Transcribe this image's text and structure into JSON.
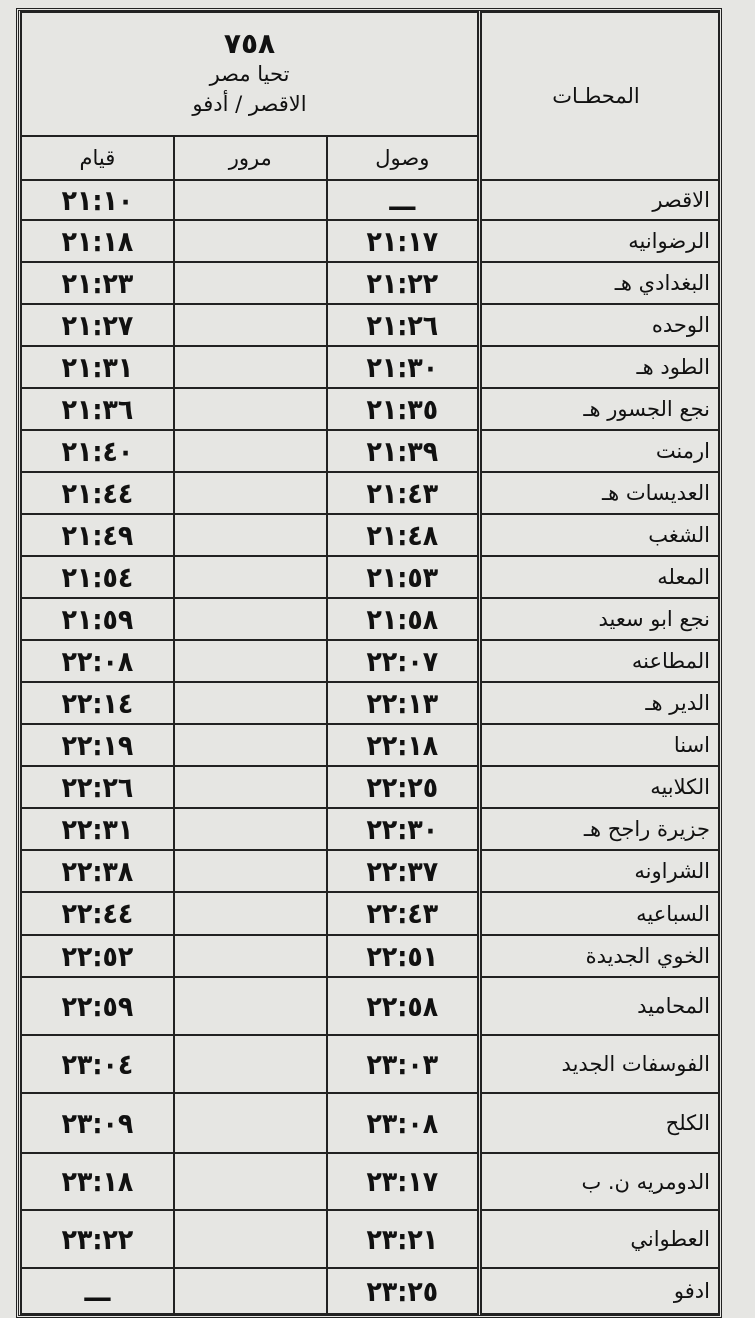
{
  "header": {
    "stations_label": "المحطـات",
    "train_number": "٧٥٨",
    "train_name": "تحيا مصر",
    "route": "الاقصر / أدفو",
    "columns": {
      "arrival": "وصول",
      "pass": "مرور",
      "departure": "قيام"
    }
  },
  "rows": [
    {
      "station": "الاقصر",
      "arrival": "ـــ",
      "pass": "",
      "departure": "٢١:١٠"
    },
    {
      "station": "الرضوانيه",
      "arrival": "٢١:١٧",
      "pass": "",
      "departure": "٢١:١٨"
    },
    {
      "station": "البغدادي هـ",
      "arrival": "٢١:٢٢",
      "pass": "",
      "departure": "٢١:٢٣"
    },
    {
      "station": "الوحده",
      "arrival": "٢١:٢٦",
      "pass": "",
      "departure": "٢١:٢٧"
    },
    {
      "station": "الطود هـ",
      "arrival": "٢١:٣٠",
      "pass": "",
      "departure": "٢١:٣١"
    },
    {
      "station": "نجع الجسور هـ",
      "arrival": "٢١:٣٥",
      "pass": "",
      "departure": "٢١:٣٦"
    },
    {
      "station": "ارمنت",
      "arrival": "٢١:٣٩",
      "pass": "",
      "departure": "٢١:٤٠"
    },
    {
      "station": "العديسات هـ",
      "arrival": "٢١:٤٣",
      "pass": "",
      "departure": "٢١:٤٤"
    },
    {
      "station": "الشغب",
      "arrival": "٢١:٤٨",
      "pass": "",
      "departure": "٢١:٤٩"
    },
    {
      "station": "المعله",
      "arrival": "٢١:٥٣",
      "pass": "",
      "departure": "٢١:٥٤"
    },
    {
      "station": "نجع ابو سعيد",
      "arrival": "٢١:٥٨",
      "pass": "",
      "departure": "٢١:٥٩"
    },
    {
      "station": "المطاعنه",
      "arrival": "٢٢:٠٧",
      "pass": "",
      "departure": "٢٢:٠٨"
    },
    {
      "station": "الدير هـ",
      "arrival": "٢٢:١٣",
      "pass": "",
      "departure": "٢٢:١٤"
    },
    {
      "station": "اسنا",
      "arrival": "٢٢:١٨",
      "pass": "",
      "departure": "٢٢:١٩"
    },
    {
      "station": "الكلابيه",
      "arrival": "٢٢:٢٥",
      "pass": "",
      "departure": "٢٢:٢٦"
    },
    {
      "station": "جزيرة راجح هـ",
      "arrival": "٢٢:٣٠",
      "pass": "",
      "departure": "٢٢:٣١"
    },
    {
      "station": "الشراونه",
      "arrival": "٢٢:٣٧",
      "pass": "",
      "departure": "٢٢:٣٨"
    },
    {
      "station": "السباعيه",
      "arrival": "٢٢:٤٣",
      "pass": "",
      "departure": "٢٢:٤٤"
    },
    {
      "station": "الخوي الجديدة",
      "arrival": "٢٢:٥١",
      "pass": "",
      "departure": "٢٢:٥٢"
    },
    {
      "station": "المحاميد",
      "arrival": "٢٢:٥٨",
      "pass": "",
      "departure": "٢٢:٥٩"
    },
    {
      "station": "الفوسفات الجديد",
      "arrival": "٢٣:٠٣",
      "pass": "",
      "departure": "٢٣:٠٤"
    },
    {
      "station": "الكلح",
      "arrival": "٢٣:٠٨",
      "pass": "",
      "departure": "٢٣:٠٩"
    },
    {
      "station": "الدومريه ن. ب",
      "arrival": "٢٣:١٧",
      "pass": "",
      "departure": "٢٣:١٨"
    },
    {
      "station": "العطواني",
      "arrival": "٢٣:٢١",
      "pass": "",
      "departure": "٢٣:٢٢"
    },
    {
      "station": "ادفو",
      "arrival": "٢٣:٢٥",
      "pass": "",
      "departure": "ـــ"
    }
  ]
}
